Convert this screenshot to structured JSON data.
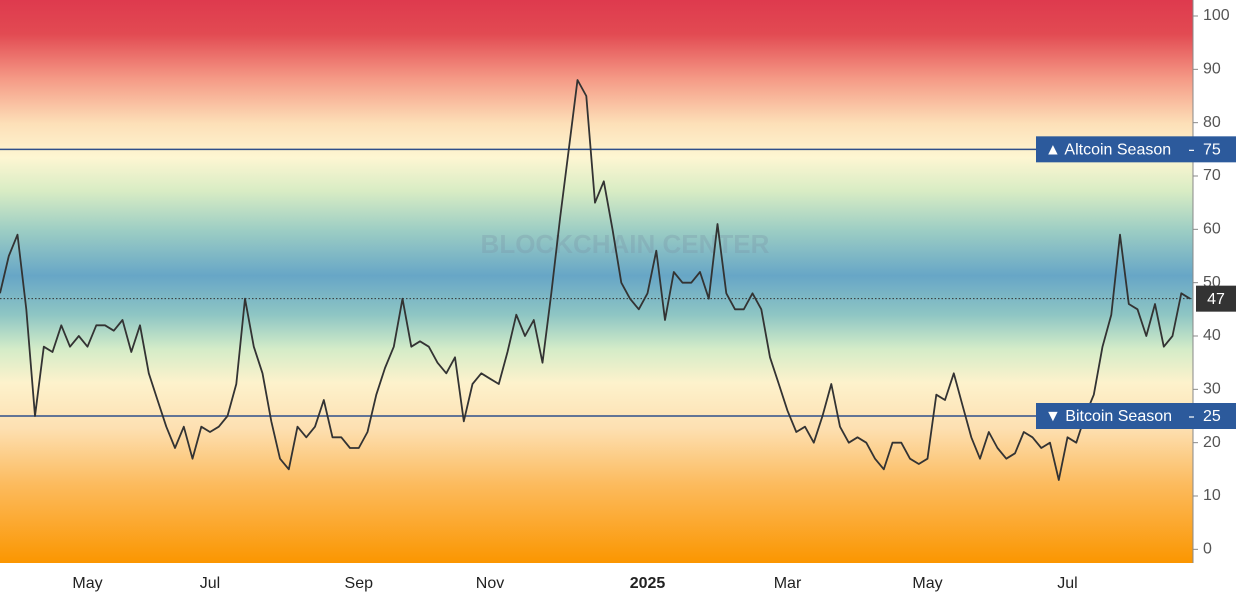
{
  "chart_data": {
    "type": "line",
    "watermark": "BLOCKCHAIN CENTER",
    "categories": [
      null,
      null,
      null,
      null,
      null,
      null,
      null,
      null,
      null,
      null,
      "May",
      null,
      null,
      null,
      null,
      null,
      null,
      null,
      null,
      null,
      null,
      null,
      null,
      null,
      "Jul",
      null,
      null,
      null,
      null,
      null,
      null,
      null,
      null,
      null,
      null,
      null,
      null,
      null,
      null,
      null,
      null,
      "Sep",
      null,
      null,
      null,
      null,
      null,
      null,
      null,
      null,
      null,
      null,
      null,
      null,
      null,
      null,
      "Nov",
      null,
      null,
      null,
      null,
      null,
      null,
      null,
      null,
      null,
      null,
      null,
      null,
      null,
      null,
      null,
      null,
      null,
      "2025",
      null,
      null,
      null,
      null,
      null,
      null,
      null,
      null,
      null,
      null,
      null,
      null,
      null,
      null,
      null,
      "Mar",
      null,
      null,
      null,
      null,
      null,
      null,
      null,
      null,
      null,
      null,
      null,
      null,
      null,
      null,
      null,
      "May",
      null,
      null,
      null,
      null,
      null,
      null,
      null,
      null,
      null,
      null,
      null,
      null,
      null,
      null,
      null,
      "Jul",
      null,
      null,
      null,
      null,
      null,
      null,
      null,
      null,
      null,
      null,
      null,
      null,
      null,
      null
    ],
    "series": [
      {
        "color": "#333333",
        "values": [
          48,
          55,
          59,
          45,
          25,
          38,
          37,
          42,
          38,
          40,
          38,
          42,
          42,
          41,
          43,
          37,
          42,
          33,
          28,
          23,
          19,
          23,
          17,
          23,
          22,
          23,
          25,
          31,
          47,
          38,
          33,
          24,
          17,
          15,
          23,
          21,
          23,
          28,
          21,
          21,
          19,
          19,
          22,
          29,
          34,
          38,
          47,
          38,
          39,
          38,
          35,
          33,
          36,
          24,
          31,
          33,
          32,
          31,
          37,
          44,
          40,
          43,
          35,
          48,
          62,
          75,
          88,
          85,
          65,
          69,
          60,
          50,
          47,
          45,
          48,
          56,
          43,
          52,
          50,
          50,
          52,
          47,
          61,
          48,
          45,
          45,
          48,
          45,
          36,
          31,
          26,
          22,
          23,
          20,
          25,
          31,
          23,
          20,
          21,
          20,
          17,
          15,
          20,
          20,
          17,
          16,
          17,
          29,
          28,
          33,
          27,
          21,
          17,
          22,
          19,
          17,
          18,
          22,
          21,
          19,
          20,
          13,
          21,
          20,
          25,
          29,
          38,
          44,
          59,
          46,
          45,
          40,
          46,
          38,
          40,
          48,
          47
        ]
      }
    ],
    "reference_lines": [
      {
        "label": "▲ Altcoin Season",
        "value": 75
      },
      {
        "label": "▼ Bitcoin Season",
        "value": 25
      }
    ],
    "ylim": [
      -2,
      103
    ],
    "yticks": [
      0,
      10,
      20,
      30,
      40,
      50,
      60,
      70,
      80,
      90,
      100
    ]
  }
}
